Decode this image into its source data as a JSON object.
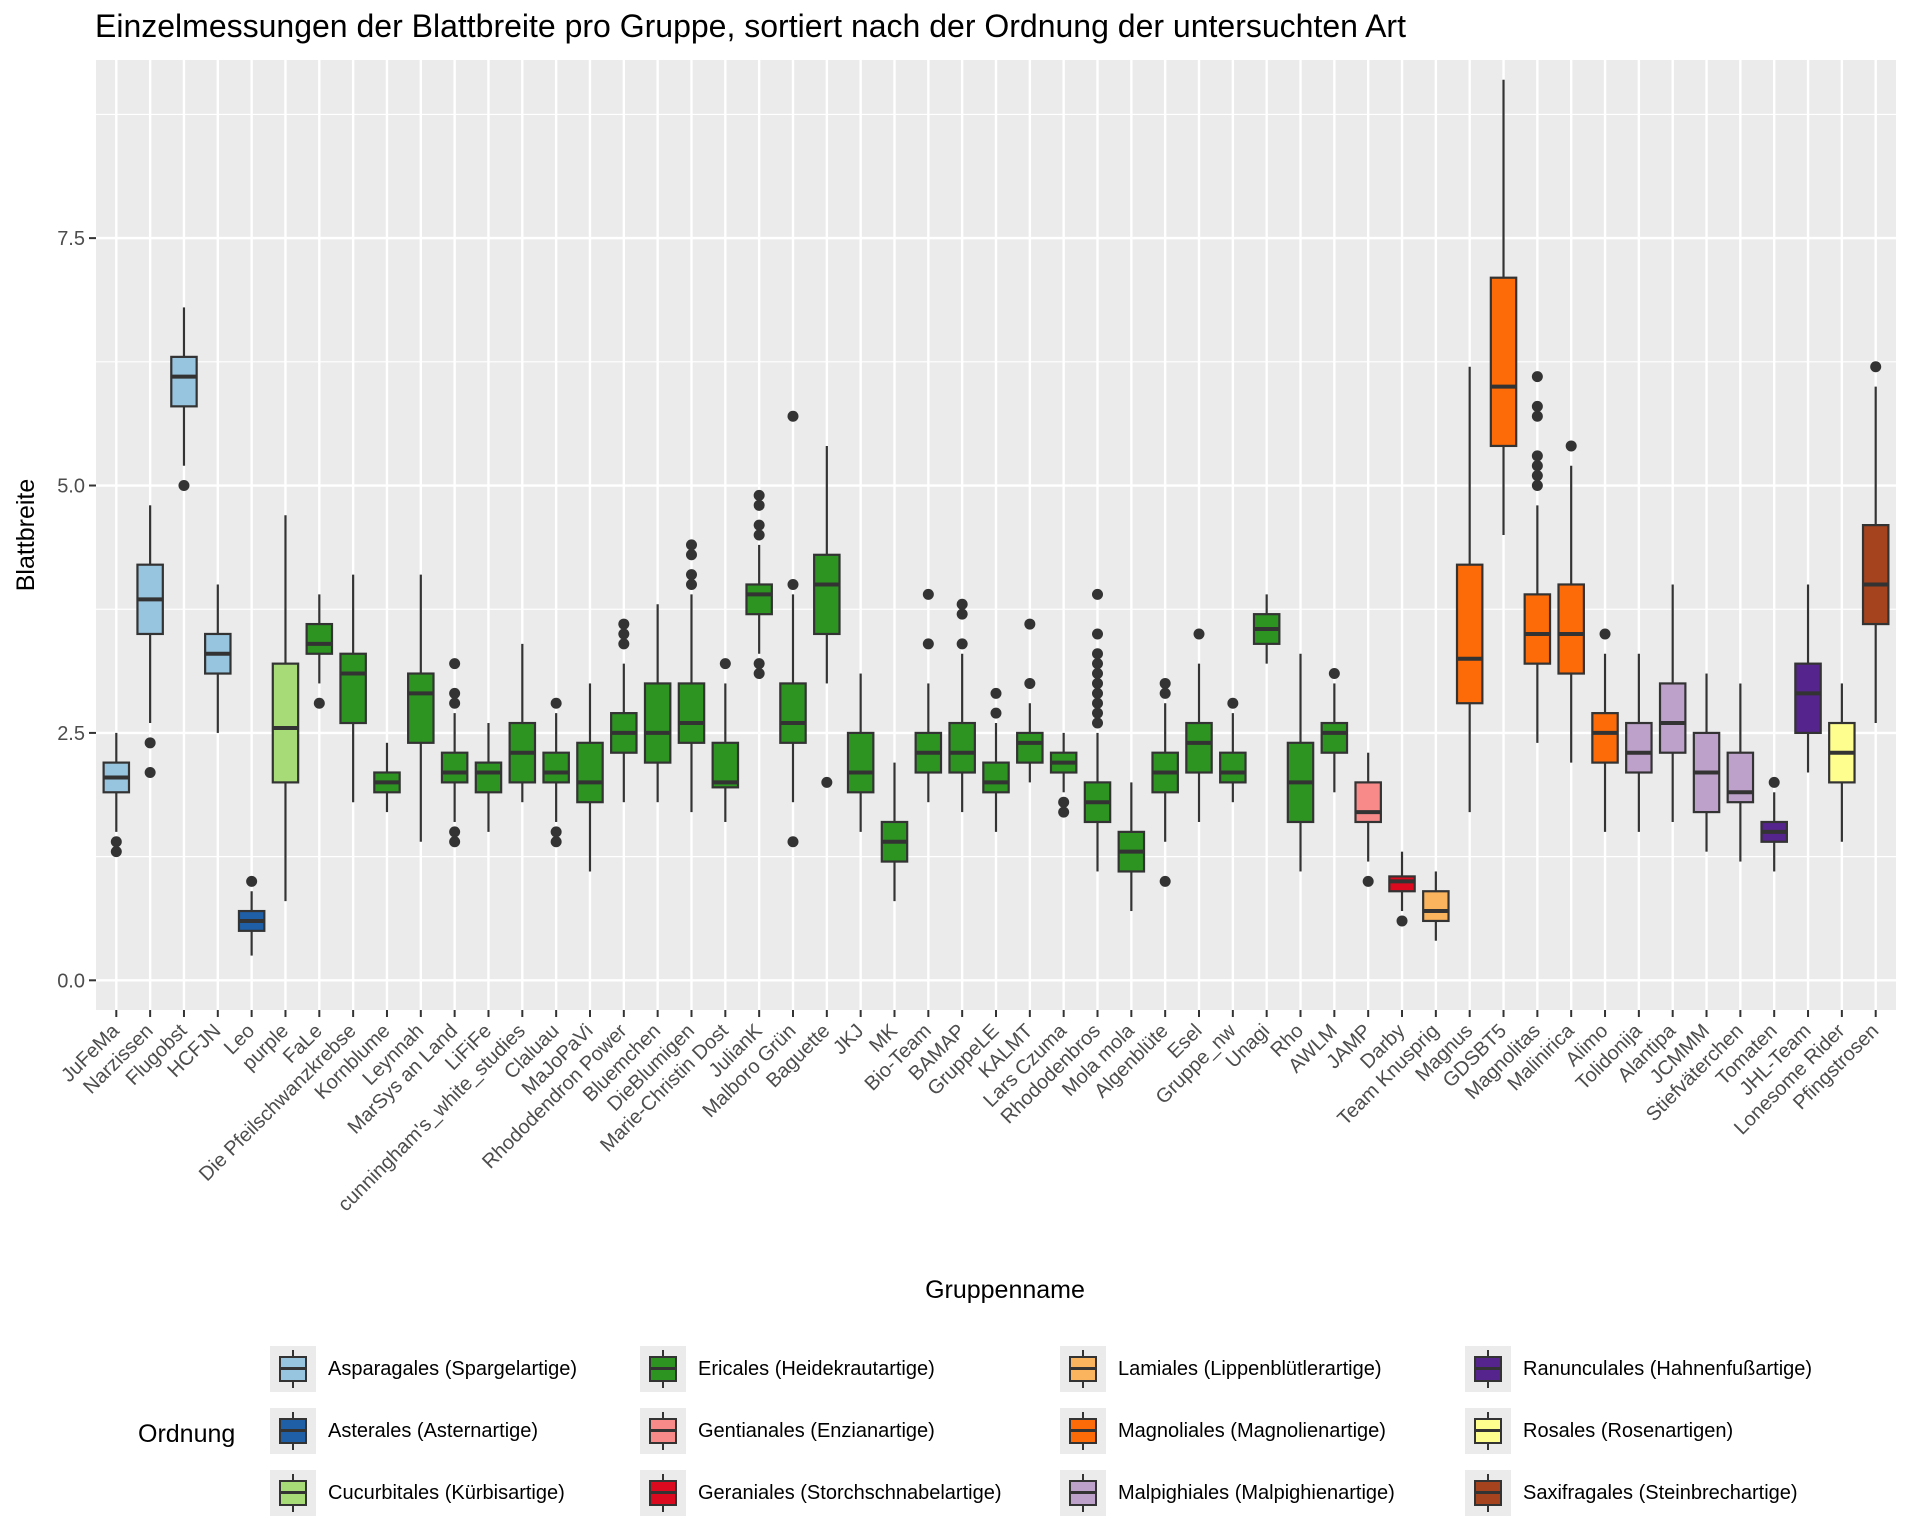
{
  "chart_data": {
    "type": "boxplot",
    "title": "Einzelmessungen der Blattbreite pro Gruppe, sortiert nach der Ordnung der untersuchten Art",
    "xlabel": "Gruppenname",
    "ylabel": "Blattbreite",
    "ylim": [
      -0.3,
      9.3
    ],
    "yticks": [
      0.0,
      2.5,
      5.0,
      7.5
    ],
    "ytick_labels": [
      "0.0",
      "2.5",
      "5.0",
      "7.5"
    ],
    "grid": true,
    "legend": {
      "title": "Ordnung",
      "position": "bottom",
      "entries": [
        {
          "key": "Asparagales",
          "label": "Asparagales (Spargelartige)",
          "color": "#97C4DE"
        },
        {
          "key": "Asterales",
          "label": "Asterales (Asternartige)",
          "color": "#1F5FA6"
        },
        {
          "key": "Cucurbitales",
          "label": "Cucurbitales (Kürbisartige)",
          "color": "#A6DB78"
        },
        {
          "key": "Ericales",
          "label": "Ericales (Heidekrautartige)",
          "color": "#2D9422"
        },
        {
          "key": "Gentianales",
          "label": "Gentianales (Enzianartige)",
          "color": "#F88A8A"
        },
        {
          "key": "Geraniales",
          "label": "Geraniales (Storchschnabelartige)",
          "color": "#DB0A1E"
        },
        {
          "key": "Lamiales",
          "label": "Lamiales (Lippenblütlerartige)",
          "color": "#FBB45E"
        },
        {
          "key": "Magnoliales",
          "label": "Magnoliales (Magnolienartige)",
          "color": "#FC6B08"
        },
        {
          "key": "Malpighiales",
          "label": "Malpighiales (Malpighienartige)",
          "color": "#BDA1CB"
        },
        {
          "key": "Ranunculales",
          "label": "Ranunculales (Hahnenfußartige)",
          "color": "#55248C"
        },
        {
          "key": "Rosales",
          "label": "Rosales (Rosenartigen)",
          "color": "#FEFE8E"
        },
        {
          "key": "Saxifragales",
          "label": "Saxifragales (Steinbrechartige)",
          "color": "#A4431E"
        }
      ]
    },
    "groups": [
      {
        "name": "JuFeMa",
        "order": "Asparagales",
        "lo": 1.5,
        "q1": 1.9,
        "med": 2.05,
        "q3": 2.2,
        "hi": 2.5,
        "outliers": [
          1.3,
          1.4
        ]
      },
      {
        "name": "Narzissen",
        "order": "Asparagales",
        "lo": 2.6,
        "q1": 3.5,
        "med": 3.85,
        "q3": 4.2,
        "hi": 4.8,
        "outliers": [
          2.1,
          2.4
        ]
      },
      {
        "name": "Flugobst",
        "order": "Asparagales",
        "lo": 5.2,
        "q1": 5.8,
        "med": 6.1,
        "q3": 6.3,
        "hi": 6.8,
        "outliers": [
          5.0
        ]
      },
      {
        "name": "HCFJN",
        "order": "Asparagales",
        "lo": 2.5,
        "q1": 3.1,
        "med": 3.3,
        "q3": 3.5,
        "hi": 4.0,
        "outliers": []
      },
      {
        "name": "Leo",
        "order": "Asterales",
        "lo": 0.25,
        "q1": 0.5,
        "med": 0.6,
        "q3": 0.7,
        "hi": 0.9,
        "outliers": [
          1.0
        ]
      },
      {
        "name": "purple",
        "order": "Cucurbitales",
        "lo": 0.8,
        "q1": 2.0,
        "med": 2.55,
        "q3": 3.2,
        "hi": 4.7,
        "outliers": []
      },
      {
        "name": "FaLe",
        "order": "Ericales",
        "lo": 3.0,
        "q1": 3.3,
        "med": 3.4,
        "q3": 3.6,
        "hi": 3.9,
        "outliers": [
          2.8
        ]
      },
      {
        "name": "Die Pfeilschwanzkrebse",
        "order": "Ericales",
        "lo": 1.8,
        "q1": 2.6,
        "med": 3.1,
        "q3": 3.3,
        "hi": 4.1,
        "outliers": []
      },
      {
        "name": "Kornblume",
        "order": "Ericales",
        "lo": 1.7,
        "q1": 1.9,
        "med": 2.0,
        "q3": 2.1,
        "hi": 2.4,
        "outliers": []
      },
      {
        "name": "Leynnah",
        "order": "Ericales",
        "lo": 1.4,
        "q1": 2.4,
        "med": 2.9,
        "q3": 3.1,
        "hi": 4.1,
        "outliers": []
      },
      {
        "name": "MarSys an Land",
        "order": "Ericales",
        "lo": 1.6,
        "q1": 2.0,
        "med": 2.1,
        "q3": 2.3,
        "hi": 2.7,
        "outliers": [
          1.4,
          1.5,
          2.8,
          2.9,
          3.2
        ]
      },
      {
        "name": "LiFiFe",
        "order": "Ericales",
        "lo": 1.5,
        "q1": 1.9,
        "med": 2.1,
        "q3": 2.2,
        "hi": 2.6,
        "outliers": []
      },
      {
        "name": "cunningham's_white_studies",
        "order": "Ericales",
        "lo": 1.8,
        "q1": 2.0,
        "med": 2.3,
        "q3": 2.6,
        "hi": 3.4,
        "outliers": []
      },
      {
        "name": "Claluau",
        "order": "Ericales",
        "lo": 1.6,
        "q1": 2.0,
        "med": 2.1,
        "q3": 2.3,
        "hi": 2.7,
        "outliers": [
          1.4,
          1.5,
          2.8
        ]
      },
      {
        "name": "MaJoPaVi",
        "order": "Ericales",
        "lo": 1.1,
        "q1": 1.8,
        "med": 2.0,
        "q3": 2.4,
        "hi": 3.0,
        "outliers": []
      },
      {
        "name": "Rhododendron Power",
        "order": "Ericales",
        "lo": 1.8,
        "q1": 2.3,
        "med": 2.5,
        "q3": 2.7,
        "hi": 3.2,
        "outliers": [
          3.4,
          3.5,
          3.6
        ]
      },
      {
        "name": "Bluemchen",
        "order": "Ericales",
        "lo": 1.8,
        "q1": 2.2,
        "med": 2.5,
        "q3": 3.0,
        "hi": 3.8,
        "outliers": []
      },
      {
        "name": "DieBlumigen",
        "order": "Ericales",
        "lo": 1.7,
        "q1": 2.4,
        "med": 2.6,
        "q3": 3.0,
        "hi": 3.9,
        "outliers": [
          4.0,
          4.1,
          4.3,
          4.4
        ]
      },
      {
        "name": "Marie-Christin Dost",
        "order": "Ericales",
        "lo": 1.6,
        "q1": 1.95,
        "med": 2.0,
        "q3": 2.4,
        "hi": 3.0,
        "outliers": [
          3.2
        ]
      },
      {
        "name": "JulianK",
        "order": "Ericales",
        "lo": 3.3,
        "q1": 3.7,
        "med": 3.9,
        "q3": 4.0,
        "hi": 4.4,
        "outliers": [
          3.1,
          3.2,
          4.5,
          4.6,
          4.8,
          4.9
        ]
      },
      {
        "name": "Malboro Grün",
        "order": "Ericales",
        "lo": 1.8,
        "q1": 2.4,
        "med": 2.6,
        "q3": 3.0,
        "hi": 3.9,
        "outliers": [
          1.4,
          4.0,
          5.7
        ]
      },
      {
        "name": "Baguette",
        "order": "Ericales",
        "lo": 3.0,
        "q1": 3.5,
        "med": 4.0,
        "q3": 4.3,
        "hi": 5.4,
        "outliers": [
          2.0
        ]
      },
      {
        "name": "JKJ",
        "order": "Ericales",
        "lo": 1.5,
        "q1": 1.9,
        "med": 2.1,
        "q3": 2.5,
        "hi": 3.1,
        "outliers": []
      },
      {
        "name": "MK",
        "order": "Ericales",
        "lo": 0.8,
        "q1": 1.2,
        "med": 1.4,
        "q3": 1.6,
        "hi": 2.2,
        "outliers": []
      },
      {
        "name": "Bio-Team",
        "order": "Ericales",
        "lo": 1.8,
        "q1": 2.1,
        "med": 2.3,
        "q3": 2.5,
        "hi": 3.0,
        "outliers": [
          3.4,
          3.9
        ]
      },
      {
        "name": "BAMAP",
        "order": "Ericales",
        "lo": 1.7,
        "q1": 2.1,
        "med": 2.3,
        "q3": 2.6,
        "hi": 3.3,
        "outliers": [
          3.4,
          3.7,
          3.8
        ]
      },
      {
        "name": "GruppeLE",
        "order": "Ericales",
        "lo": 1.5,
        "q1": 1.9,
        "med": 2.0,
        "q3": 2.2,
        "hi": 2.6,
        "outliers": [
          2.7,
          2.9
        ]
      },
      {
        "name": "KALMT",
        "order": "Ericales",
        "lo": 2.0,
        "q1": 2.2,
        "med": 2.4,
        "q3": 2.5,
        "hi": 2.8,
        "outliers": [
          3.0,
          3.6
        ]
      },
      {
        "name": "Lars Czuma",
        "order": "Ericales",
        "lo": 1.9,
        "q1": 2.1,
        "med": 2.2,
        "q3": 2.3,
        "hi": 2.5,
        "outliers": [
          1.7,
          1.8
        ]
      },
      {
        "name": "Rhododenbros",
        "order": "Ericales",
        "lo": 1.1,
        "q1": 1.6,
        "med": 1.8,
        "q3": 2.0,
        "hi": 2.5,
        "outliers": [
          2.6,
          2.7,
          2.8,
          2.9,
          3.0,
          3.1,
          3.2,
          3.3,
          3.5,
          3.9
        ]
      },
      {
        "name": "Mola mola",
        "order": "Ericales",
        "lo": 0.7,
        "q1": 1.1,
        "med": 1.3,
        "q3": 1.5,
        "hi": 2.0,
        "outliers": []
      },
      {
        "name": "Algenblüte",
        "order": "Ericales",
        "lo": 1.4,
        "q1": 1.9,
        "med": 2.1,
        "q3": 2.3,
        "hi": 2.8,
        "outliers": [
          1.0,
          2.9,
          3.0
        ]
      },
      {
        "name": "Esel",
        "order": "Ericales",
        "lo": 1.6,
        "q1": 2.1,
        "med": 2.4,
        "q3": 2.6,
        "hi": 3.2,
        "outliers": [
          3.5
        ]
      },
      {
        "name": "Gruppe_nw",
        "order": "Ericales",
        "lo": 1.8,
        "q1": 2.0,
        "med": 2.1,
        "q3": 2.3,
        "hi": 2.7,
        "outliers": [
          2.8
        ]
      },
      {
        "name": "Unagi",
        "order": "Ericales",
        "lo": 3.2,
        "q1": 3.4,
        "med": 3.55,
        "q3": 3.7,
        "hi": 3.9,
        "outliers": []
      },
      {
        "name": "Rho",
        "order": "Ericales",
        "lo": 1.1,
        "q1": 1.6,
        "med": 2.0,
        "q3": 2.4,
        "hi": 3.3,
        "outliers": []
      },
      {
        "name": "AWLM",
        "order": "Ericales",
        "lo": 1.9,
        "q1": 2.3,
        "med": 2.5,
        "q3": 2.6,
        "hi": 3.0,
        "outliers": [
          3.1
        ]
      },
      {
        "name": "JAMP",
        "order": "Gentianales",
        "lo": 1.2,
        "q1": 1.6,
        "med": 1.7,
        "q3": 2.0,
        "hi": 2.3,
        "outliers": [
          1.0
        ]
      },
      {
        "name": "Darby",
        "order": "Geraniales",
        "lo": 0.7,
        "q1": 0.9,
        "med": 1.0,
        "q3": 1.05,
        "hi": 1.3,
        "outliers": [
          0.6
        ]
      },
      {
        "name": "Team Knusprig",
        "order": "Lamiales",
        "lo": 0.4,
        "q1": 0.6,
        "med": 0.7,
        "q3": 0.9,
        "hi": 1.1,
        "outliers": []
      },
      {
        "name": "Magnus",
        "order": "Magnoliales",
        "lo": 1.7,
        "q1": 2.8,
        "med": 3.25,
        "q3": 4.2,
        "hi": 6.2,
        "outliers": []
      },
      {
        "name": "GDSBT5",
        "order": "Magnoliales",
        "lo": 4.5,
        "q1": 5.4,
        "med": 6.0,
        "q3": 7.1,
        "hi": 9.1,
        "outliers": []
      },
      {
        "name": "Magnolitas",
        "order": "Magnoliales",
        "lo": 2.4,
        "q1": 3.2,
        "med": 3.5,
        "q3": 3.9,
        "hi": 4.8,
        "outliers": [
          5.0,
          5.1,
          5.2,
          5.3,
          5.7,
          5.8,
          6.1
        ]
      },
      {
        "name": "Malinirica",
        "order": "Magnoliales",
        "lo": 2.2,
        "q1": 3.1,
        "med": 3.5,
        "q3": 4.0,
        "hi": 5.2,
        "outliers": [
          5.4
        ]
      },
      {
        "name": "Alimo",
        "order": "Magnoliales",
        "lo": 1.5,
        "q1": 2.2,
        "med": 2.5,
        "q3": 2.7,
        "hi": 3.3,
        "outliers": [
          3.5
        ]
      },
      {
        "name": "Tolidonija",
        "order": "Malpighiales",
        "lo": 1.5,
        "q1": 2.1,
        "med": 2.3,
        "q3": 2.6,
        "hi": 3.3,
        "outliers": []
      },
      {
        "name": "Alantipa",
        "order": "Malpighiales",
        "lo": 1.6,
        "q1": 2.3,
        "med": 2.6,
        "q3": 3.0,
        "hi": 4.0,
        "outliers": []
      },
      {
        "name": "JCMMM",
        "order": "Malpighiales",
        "lo": 1.3,
        "q1": 1.7,
        "med": 2.1,
        "q3": 2.5,
        "hi": 3.1,
        "outliers": []
      },
      {
        "name": "Stiefväterchen",
        "order": "Malpighiales",
        "lo": 1.2,
        "q1": 1.8,
        "med": 1.9,
        "q3": 2.3,
        "hi": 3.0,
        "outliers": []
      },
      {
        "name": "Tomaten",
        "order": "Ranunculales",
        "lo": 1.1,
        "q1": 1.4,
        "med": 1.5,
        "q3": 1.6,
        "hi": 1.9,
        "outliers": [
          2.0
        ]
      },
      {
        "name": "JHL-Team",
        "order": "Ranunculales",
        "lo": 2.1,
        "q1": 2.5,
        "med": 2.9,
        "q3": 3.2,
        "hi": 4.0,
        "outliers": []
      },
      {
        "name": "Lonesome Rider",
        "order": "Rosales",
        "lo": 1.4,
        "q1": 2.0,
        "med": 2.3,
        "q3": 2.6,
        "hi": 3.0,
        "outliers": []
      },
      {
        "name": "Pfingstrosen",
        "order": "Saxifragales",
        "lo": 2.6,
        "q1": 3.6,
        "med": 4.0,
        "q3": 4.6,
        "hi": 6.0,
        "outliers": [
          6.2
        ]
      }
    ]
  }
}
